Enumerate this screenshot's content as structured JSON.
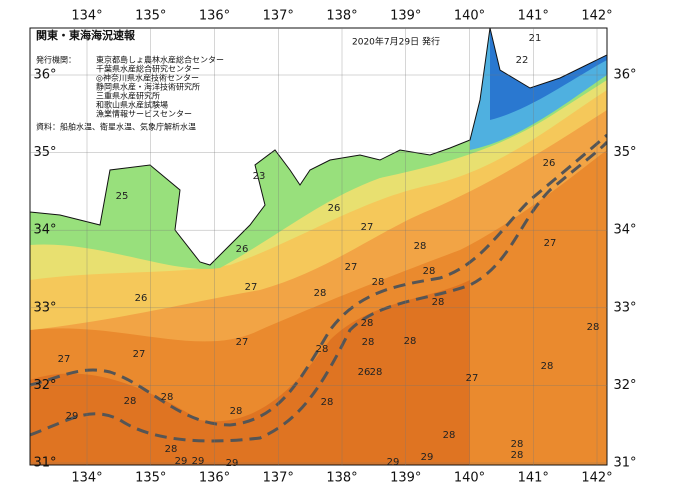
{
  "header": {
    "title": "関東・東海海況速報",
    "date": "2020年7月29日 発行",
    "issuer_label": "発行機関：",
    "issuers": [
      "東京都島しょ農林水産総合センター",
      "千葉県水産総合研究センター",
      "◎神奈川県水産技術センター",
      "静岡県水産・海洋技術研究所",
      "三重県水産研究所",
      "和歌山県水産試験場",
      "漁業情報サービスセンター"
    ],
    "source": "資料：船舶水温、衛星水温、気象庁解析水温"
  },
  "map": {
    "lon_ticks": [
      {
        "value": 134,
        "label": "134°"
      },
      {
        "value": 135,
        "label": "135°"
      },
      {
        "value": 136,
        "label": "136°"
      },
      {
        "value": 137,
        "label": "137°"
      },
      {
        "value": 138,
        "label": "138°"
      },
      {
        "value": 139,
        "label": "139°"
      },
      {
        "value": 140,
        "label": "140°"
      },
      {
        "value": 141,
        "label": "141°"
      },
      {
        "value": 142,
        "label": "142°"
      }
    ],
    "lat_ticks": [
      {
        "value": 36,
        "label": "36°"
      },
      {
        "value": 35,
        "label": "35°"
      },
      {
        "value": 34,
        "label": "34°"
      },
      {
        "value": 33,
        "label": "33°"
      },
      {
        "value": 32,
        "label": "32°"
      },
      {
        "value": 31,
        "label": "31°"
      }
    ],
    "sst_labels": [
      21,
      22,
      26,
      23,
      25,
      26,
      27,
      28,
      26,
      27,
      27,
      28,
      28,
      27,
      28,
      26,
      28,
      28,
      28,
      28,
      28,
      27,
      28,
      27,
      27,
      28,
      26,
      28,
      27,
      28,
      28,
      28,
      28,
      29,
      28,
      28,
      28,
      28,
      29,
      29,
      29,
      29,
      29
    ]
  }
}
